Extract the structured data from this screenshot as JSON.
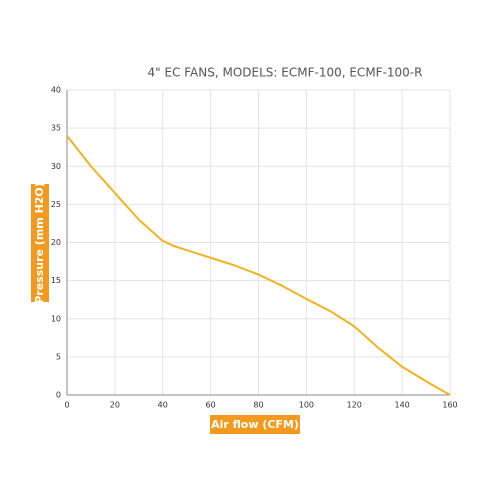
{
  "chart_data": {
    "type": "line",
    "title": "4\" EC FANS, MODELS: ECMF-100, ECMF-100-R",
    "x_label": "Air flow (CFM)",
    "y_label": "Pressure (mm H2O)",
    "x": [
      0,
      10,
      20,
      30,
      40,
      45,
      55,
      70,
      80,
      90,
      100,
      110,
      120,
      130,
      140,
      150,
      160
    ],
    "series": [
      {
        "color": "#f0b323",
        "values": [
          34,
          30,
          26.5,
          23,
          20.2,
          19.5,
          18.5,
          17,
          15.8,
          14.3,
          12.6,
          11,
          9,
          6.2,
          3.7,
          1.8,
          0
        ]
      }
    ],
    "xlim": [
      0,
      160
    ],
    "xticks": [
      0,
      20,
      40,
      60,
      80,
      100,
      120,
      140,
      160
    ],
    "ylim": [
      0,
      40
    ],
    "yticks": [
      0,
      5,
      10,
      15,
      20,
      25,
      30,
      35,
      40
    ],
    "grid": true,
    "label_box_color": "#f39a1e"
  }
}
